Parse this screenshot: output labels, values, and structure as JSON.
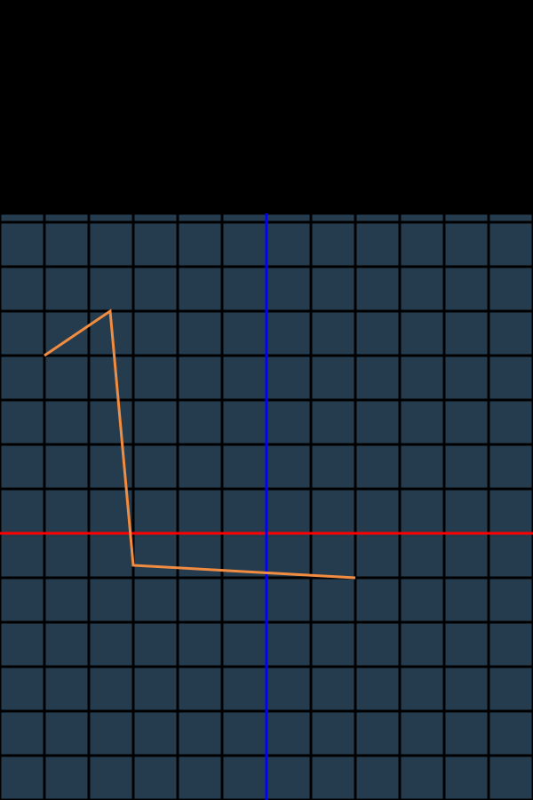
{
  "colors": {
    "background": "#000000",
    "grid_cell": "#253c4f",
    "grid_line": "#000000",
    "x_axis": "#ff0000",
    "y_axis": "#0000ff",
    "path": "#f28c40"
  },
  "grid": {
    "columns": 12,
    "rows": 13.2,
    "x_range": [
      -6,
      6
    ],
    "y_range": [
      -6,
      7.2
    ]
  },
  "path": {
    "points": [
      [
        -5,
        4
      ],
      [
        -3.52,
        5
      ],
      [
        -3,
        -0.72
      ],
      [
        2,
        -1
      ]
    ]
  }
}
